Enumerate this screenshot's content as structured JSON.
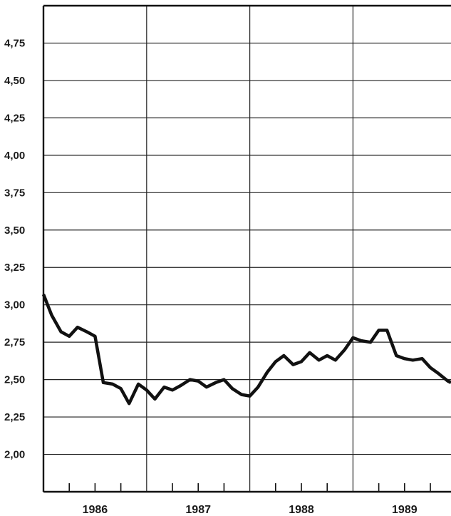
{
  "chart_data": {
    "type": "line",
    "title": "",
    "xlabel": "",
    "ylabel": "",
    "ylim": [
      1.75,
      5.0
    ],
    "grid": true,
    "y_ticks": [
      2.0,
      2.25,
      2.5,
      2.75,
      3.0,
      3.25,
      3.5,
      3.75,
      4.0,
      4.25,
      4.5,
      4.75
    ],
    "y_tick_labels": [
      "2,00",
      "2,25",
      "2,50",
      "2,75",
      "3,00",
      "3,25",
      "3,50",
      "3,75",
      "4,00",
      "4,25",
      "4,50",
      "4,75"
    ],
    "x_categories": [
      "1986",
      "1987",
      "1988",
      "1989"
    ],
    "xlim": [
      1986.0,
      1989.95
    ],
    "series": [
      {
        "color": "#111111",
        "x": [
          1986.0,
          1986.08,
          1986.17,
          1986.25,
          1986.33,
          1986.42,
          1986.5,
          1986.58,
          1986.67,
          1986.75,
          1986.83,
          1986.92,
          1987.0,
          1987.08,
          1987.17,
          1987.25,
          1987.33,
          1987.42,
          1987.5,
          1987.58,
          1987.67,
          1987.75,
          1987.83,
          1987.92,
          1988.0,
          1988.08,
          1988.17,
          1988.25,
          1988.33,
          1988.42,
          1988.5,
          1988.58,
          1988.67,
          1988.75,
          1988.83,
          1988.92,
          1989.0,
          1989.08,
          1989.17,
          1989.25,
          1989.33,
          1989.42,
          1989.5,
          1989.58,
          1989.67,
          1989.75,
          1989.83,
          1989.92,
          1989.95
        ],
        "values": [
          3.07,
          2.93,
          2.82,
          2.79,
          2.85,
          2.82,
          2.79,
          2.48,
          2.47,
          2.44,
          2.34,
          2.47,
          2.43,
          2.37,
          2.45,
          2.43,
          2.46,
          2.5,
          2.49,
          2.45,
          2.48,
          2.5,
          2.44,
          2.4,
          2.39,
          2.45,
          2.55,
          2.62,
          2.66,
          2.6,
          2.62,
          2.68,
          2.63,
          2.66,
          2.63,
          2.7,
          2.78,
          2.76,
          2.75,
          2.83,
          2.83,
          2.66,
          2.64,
          2.63,
          2.64,
          2.58,
          2.54,
          2.49,
          2.48
        ]
      }
    ]
  }
}
